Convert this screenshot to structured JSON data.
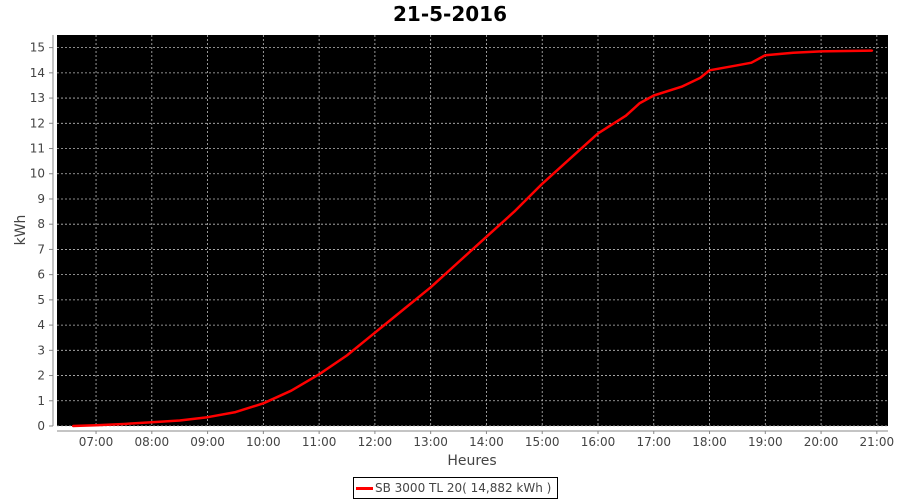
{
  "chart_data": {
    "type": "line",
    "title": "21-5-2016",
    "xlabel": "Heures",
    "ylabel": "kWh",
    "xlim": [
      "06:18",
      "21:12"
    ],
    "ylim": [
      0,
      15.5
    ],
    "x_ticks": [
      "07:00",
      "08:00",
      "09:00",
      "10:00",
      "11:00",
      "12:00",
      "13:00",
      "14:00",
      "15:00",
      "16:00",
      "17:00",
      "18:00",
      "19:00",
      "20:00",
      "21:00"
    ],
    "y_ticks": [
      0,
      1,
      2,
      3,
      4,
      5,
      6,
      7,
      8,
      9,
      10,
      11,
      12,
      13,
      14,
      15
    ],
    "grid": true,
    "background": "#000000",
    "legend_position": "bottom",
    "series": [
      {
        "name": "SB 3000 TL 20( 14,882 kWh )",
        "color": "#ff0000",
        "x": [
          "06:35",
          "07:00",
          "07:30",
          "08:00",
          "08:30",
          "09:00",
          "09:30",
          "10:00",
          "10:30",
          "11:00",
          "11:30",
          "12:00",
          "12:30",
          "13:00",
          "13:30",
          "14:00",
          "14:30",
          "15:00",
          "15:30",
          "16:00",
          "16:30",
          "16:45",
          "17:00",
          "17:30",
          "17:50",
          "18:00",
          "18:30",
          "18:45",
          "19:00",
          "19:30",
          "20:00",
          "20:55"
        ],
        "y": [
          0,
          0.03,
          0.08,
          0.15,
          0.22,
          0.35,
          0.55,
          0.9,
          1.4,
          2.05,
          2.8,
          3.7,
          4.6,
          5.5,
          6.5,
          7.5,
          8.5,
          9.6,
          10.6,
          11.6,
          12.3,
          12.8,
          13.1,
          13.45,
          13.8,
          14.1,
          14.3,
          14.4,
          14.7,
          14.8,
          14.85,
          14.88
        ]
      }
    ]
  }
}
